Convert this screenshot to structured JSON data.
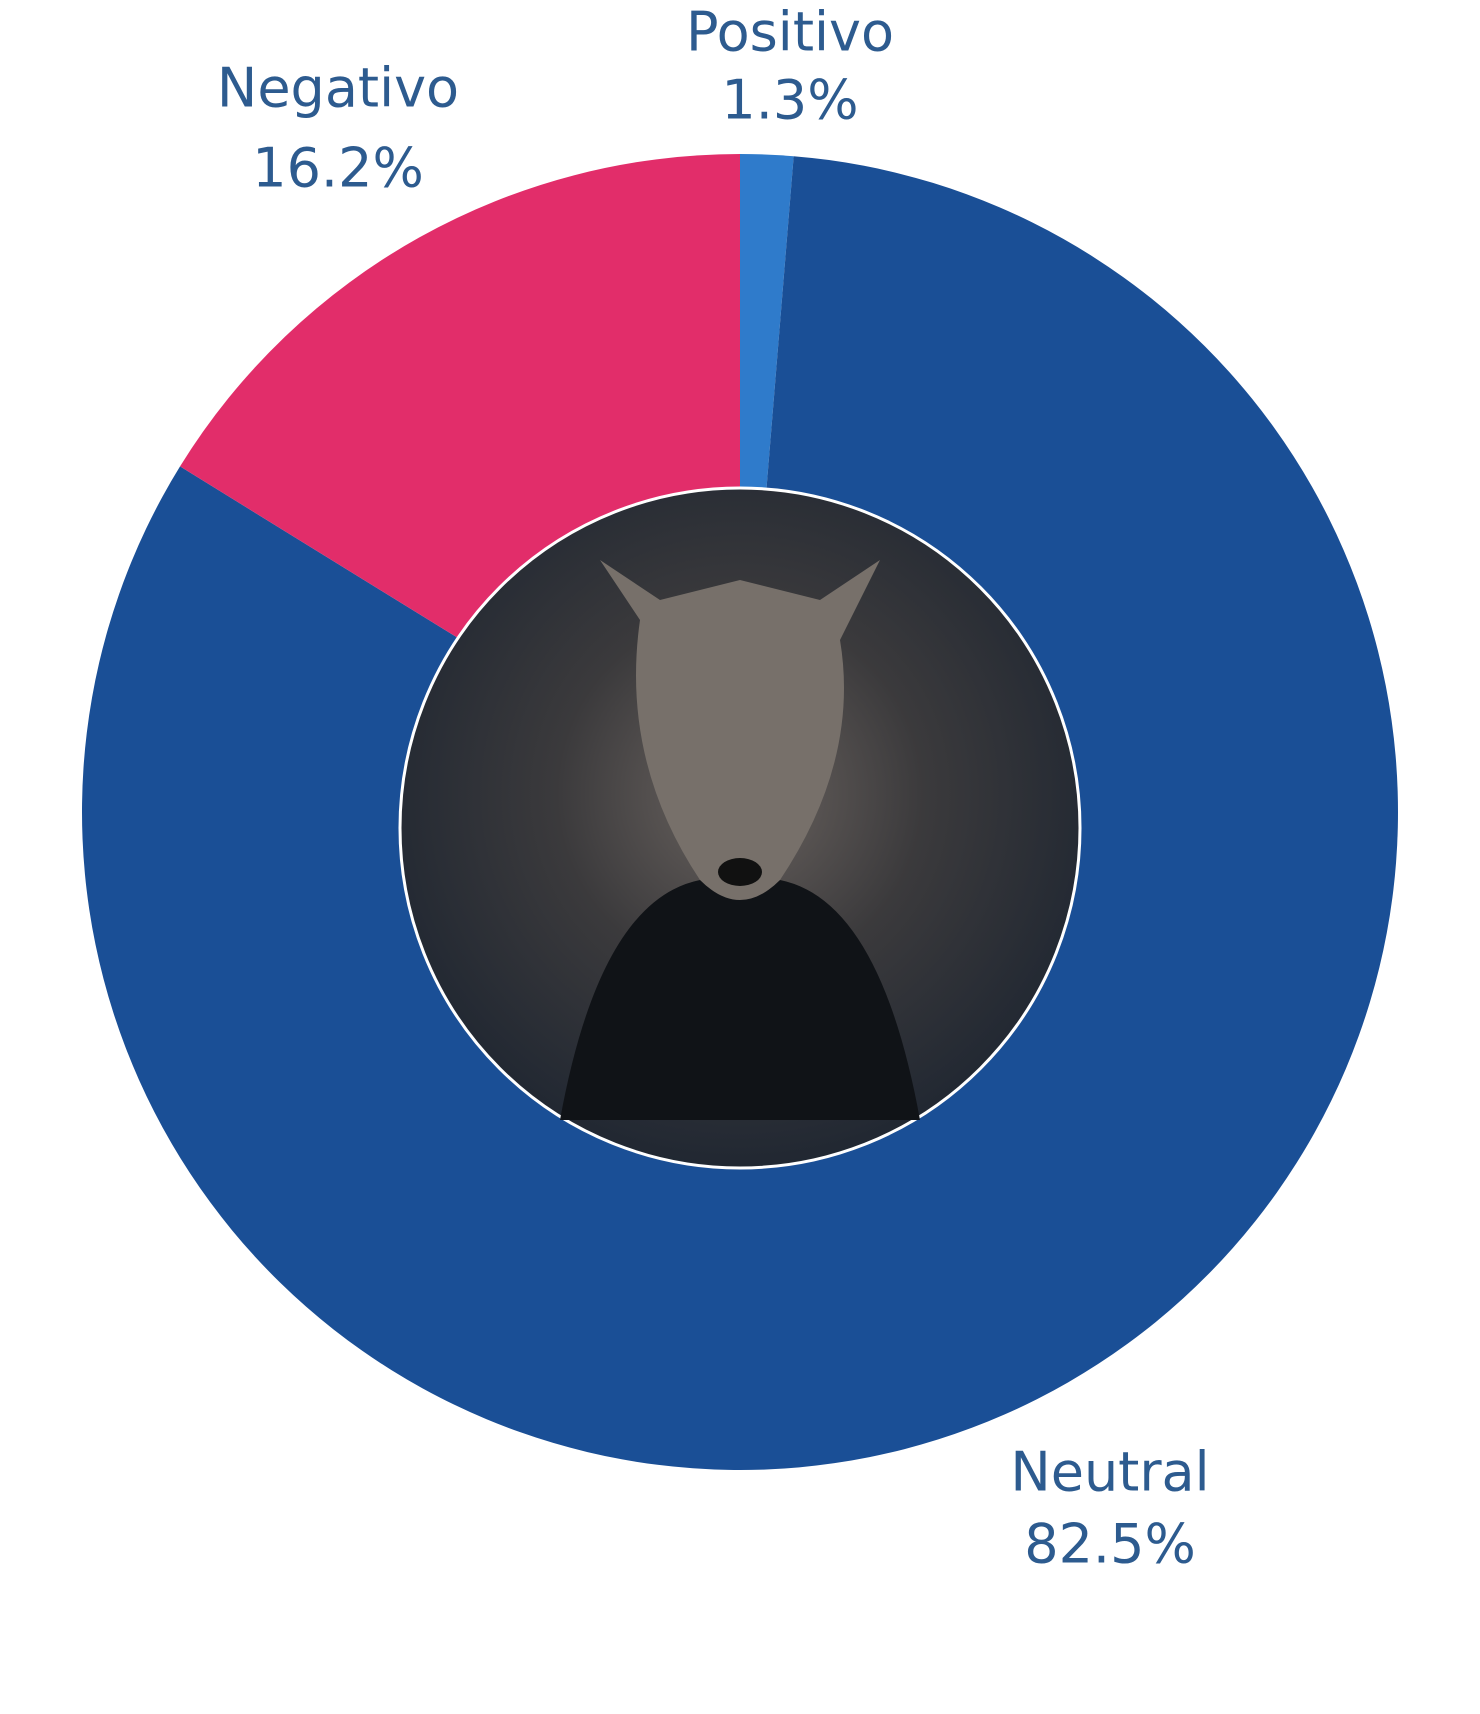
{
  "chart_data": {
    "type": "donut",
    "categories": [
      "Positivo",
      "Neutral",
      "Negativo"
    ],
    "values": [
      1.3,
      82.5,
      16.2
    ],
    "value_labels": [
      "1.3%",
      "82.5%",
      "16.2%"
    ],
    "colors": [
      "#2f7bcb",
      "#1a4f96",
      "#e22d6a"
    ]
  }
}
